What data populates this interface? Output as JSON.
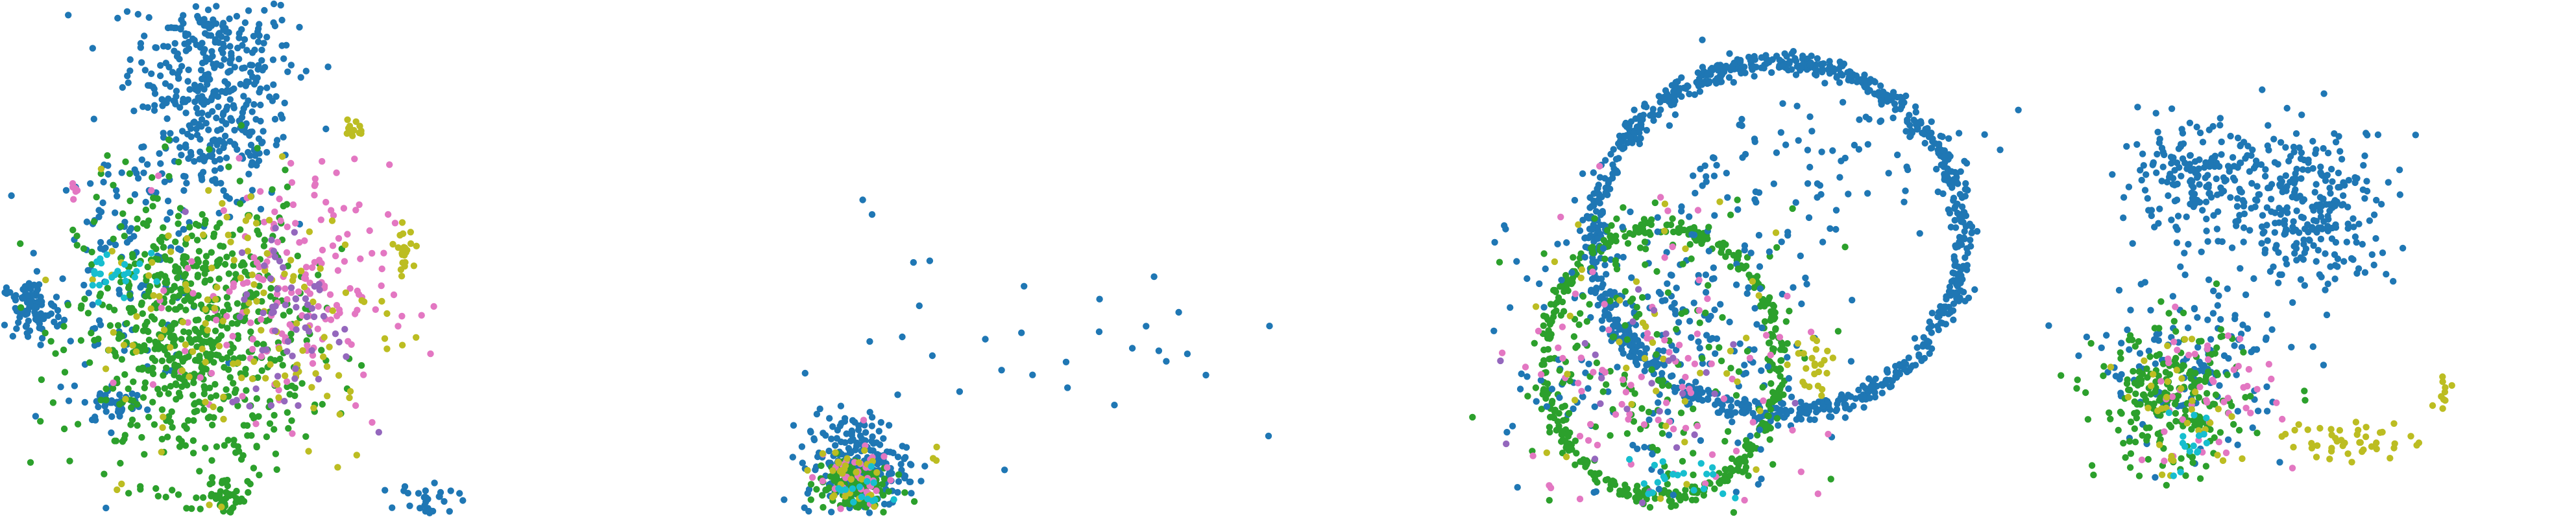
{
  "chart_data": [
    {
      "type": "scatter",
      "panel": 1,
      "xlim": [
        0,
        100
      ],
      "ylim": [
        0,
        100
      ],
      "clusters": [
        {
          "color": "blue",
          "center": [
            41,
            89
          ],
          "spread": [
            8,
            7
          ],
          "n": 260
        },
        {
          "color": "blue",
          "center": [
            42,
            72
          ],
          "spread": [
            7,
            6
          ],
          "n": 170
        },
        {
          "color": "blue",
          "center": [
            25,
            50
          ],
          "spread": [
            8,
            12
          ],
          "n": 120
        },
        {
          "color": "blue",
          "center": [
            6,
            40
          ],
          "spread": [
            3,
            3
          ],
          "n": 90
        },
        {
          "color": "blue",
          "center": [
            22,
            22
          ],
          "spread": [
            3,
            2
          ],
          "n": 45
        },
        {
          "color": "blue",
          "center": [
            82,
            3
          ],
          "spread": [
            3,
            2
          ],
          "n": 40
        },
        {
          "color": "green",
          "center": [
            37,
            35
          ],
          "spread": [
            11,
            14
          ],
          "n": 700
        },
        {
          "color": "green",
          "center": [
            44,
            4
          ],
          "spread": [
            2,
            2
          ],
          "n": 45
        },
        {
          "color": "pink",
          "center": [
            55,
            44
          ],
          "spread": [
            10,
            12
          ],
          "n": 170
        },
        {
          "color": "olive",
          "center": [
            48,
            38
          ],
          "spread": [
            15,
            15
          ],
          "n": 140
        },
        {
          "color": "purple",
          "center": [
            56,
            38
          ],
          "spread": [
            6,
            10
          ],
          "n": 60
        },
        {
          "color": "cyan",
          "center": [
            22,
            48
          ],
          "spread": [
            3,
            3
          ],
          "n": 25
        },
        {
          "color": "olive",
          "center": [
            78,
            52
          ],
          "spread": [
            1,
            2
          ],
          "n": 25
        },
        {
          "color": "olive",
          "center": [
            68,
            75
          ],
          "spread": [
            1,
            1
          ],
          "n": 12
        },
        {
          "color": "pink",
          "center": [
            14,
            63
          ],
          "spread": [
            1,
            1
          ],
          "n": 6
        }
      ]
    },
    {
      "type": "scatter",
      "panel": 2,
      "xlim": [
        0,
        100
      ],
      "ylim": [
        0,
        100
      ],
      "clusters": [
        {
          "color": "blue",
          "center": [
            22,
            10
          ],
          "spread": [
            4,
            5
          ],
          "n": 230
        },
        {
          "color": "green",
          "center": [
            21,
            6
          ],
          "spread": [
            3,
            3
          ],
          "n": 110
        },
        {
          "color": "pink",
          "center": [
            22,
            8
          ],
          "spread": [
            3,
            3
          ],
          "n": 40
        },
        {
          "color": "olive",
          "center": [
            20,
            7
          ],
          "spread": [
            3,
            3
          ],
          "n": 30
        },
        {
          "color": "cyan",
          "center": [
            23,
            5
          ],
          "spread": [
            2,
            2
          ],
          "n": 15
        },
        {
          "color": "blue",
          "center": [
            52,
            36
          ],
          "spread": [
            14,
            12
          ],
          "n": 30
        },
        {
          "color": "olive",
          "center": [
            34,
            12
          ],
          "spread": [
            2,
            1
          ],
          "n": 3
        }
      ]
    },
    {
      "type": "scatter",
      "panel": 3,
      "xlim": [
        0,
        100
      ],
      "ylim": [
        0,
        100
      ],
      "rings": [
        {
          "color": "blue",
          "center": [
            57,
            54
          ],
          "radius": [
            30,
            34
          ],
          "n": 900
        },
        {
          "color": "green",
          "center": [
            38,
            30
          ],
          "radius": [
            19,
            26
          ],
          "n": 420
        }
      ],
      "clusters": [
        {
          "color": "blue",
          "center": [
            38,
            34
          ],
          "spread": [
            12,
            16
          ],
          "n": 260
        },
        {
          "color": "green",
          "center": [
            38,
            30
          ],
          "spread": [
            12,
            16
          ],
          "n": 180
        },
        {
          "color": "pink",
          "center": [
            38,
            30
          ],
          "spread": [
            12,
            16
          ],
          "n": 90
        },
        {
          "color": "olive",
          "center": [
            38,
            30
          ],
          "spread": [
            12,
            16
          ],
          "n": 45
        },
        {
          "color": "purple",
          "center": [
            36,
            26
          ],
          "spread": [
            10,
            14
          ],
          "n": 25
        },
        {
          "color": "cyan",
          "center": [
            42,
            8
          ],
          "spread": [
            5,
            2
          ],
          "n": 20
        },
        {
          "color": "olive",
          "center": [
            62,
            30
          ],
          "spread": [
            2,
            3
          ],
          "n": 22
        },
        {
          "color": "blue",
          "center": [
            62,
            68
          ],
          "spread": [
            14,
            8
          ],
          "n": 80
        }
      ]
    },
    {
      "type": "scatter",
      "panel": 4,
      "xlim": [
        0,
        100
      ],
      "ylim": [
        0,
        100
      ],
      "clusters": [
        {
          "color": "blue",
          "center": [
            28,
            65
          ],
          "spread": [
            7,
            5
          ],
          "n": 180
        },
        {
          "color": "blue",
          "center": [
            50,
            60
          ],
          "spread": [
            8,
            8
          ],
          "n": 280
        },
        {
          "color": "blue",
          "center": [
            28,
            30
          ],
          "spread": [
            9,
            8
          ],
          "n": 140
        },
        {
          "color": "green",
          "center": [
            24,
            22
          ],
          "spread": [
            7,
            7
          ],
          "n": 230
        },
        {
          "color": "pink",
          "center": [
            30,
            24
          ],
          "spread": [
            7,
            7
          ],
          "n": 50
        },
        {
          "color": "olive",
          "center": [
            26,
            20
          ],
          "spread": [
            6,
            6
          ],
          "n": 35
        },
        {
          "color": "cyan",
          "center": [
            30,
            14
          ],
          "spread": [
            5,
            4
          ],
          "n": 15
        },
        {
          "color": "olive",
          "center": [
            57,
            15
          ],
          "spread": [
            6,
            2
          ],
          "n": 45
        },
        {
          "color": "olive",
          "center": [
            75,
            24
          ],
          "spread": [
            1,
            2
          ],
          "n": 10
        }
      ]
    }
  ],
  "colors": {
    "blue": "#1f77b4",
    "green": "#2ca02c",
    "pink": "#e377c2",
    "olive": "#bcbd22",
    "purple": "#9467bd",
    "cyan": "#17becf"
  }
}
